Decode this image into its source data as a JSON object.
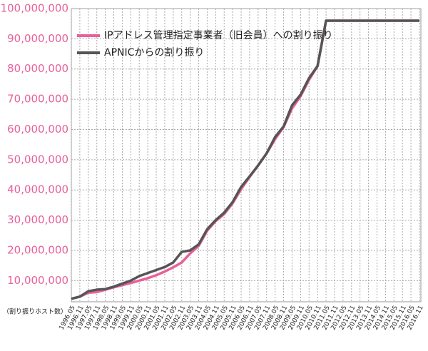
{
  "chart_data": {
    "type": "line",
    "categories": [
      "1996.05",
      "1996.11",
      "1997.05",
      "1997.11",
      "1998.05",
      "1998.11",
      "1999.05",
      "1999.11",
      "2000.05",
      "2000.11",
      "2001.05",
      "2001.11",
      "2002.05",
      "2002.11",
      "2003.05",
      "2003.11",
      "2004.05",
      "2004.11",
      "2005.05",
      "2005.11",
      "2006.05",
      "2006.11",
      "2007.05",
      "2007.11",
      "2008.05",
      "2008.11",
      "2009.05",
      "2009.11",
      "2010.05",
      "2010.11",
      "2011.05",
      "2011.11",
      "2012.05",
      "2012.11",
      "2013.05",
      "2013.11",
      "2014.05",
      "2014.11",
      "2015.05",
      "2015.11",
      "2016.05",
      "2016.11"
    ],
    "series": [
      {
        "name": "IPアドレス管理指定事業者（旧会員）への割り振り",
        "color": "#e8609a",
        "values": [
          4000000,
          4700000,
          6000000,
          6200000,
          7000000,
          7800000,
          8500000,
          9200000,
          10000000,
          10800000,
          11800000,
          13000000,
          14400000,
          16000000,
          19000000,
          21500000,
          26500000,
          29700000,
          32000000,
          35600000,
          40300000,
          44300000,
          48100000,
          52100000,
          56800000,
          60800000,
          67000000,
          71000000,
          76400000,
          81000000,
          96000000,
          96000000,
          96000000,
          96000000,
          96000000,
          96000000,
          96000000,
          96000000,
          96000000,
          96000000,
          96000000,
          96000000
        ]
      },
      {
        "name": "APNICからの割り振り",
        "color": "#555555",
        "values": [
          4000000,
          4700000,
          6500000,
          7000000,
          7200000,
          8000000,
          9000000,
          10000000,
          11500000,
          12500000,
          13500000,
          14500000,
          16000000,
          19500000,
          20000000,
          22000000,
          27000000,
          30000000,
          32500000,
          36000000,
          41000000,
          44500000,
          48100000,
          52100000,
          57500000,
          61000000,
          68000000,
          71500000,
          77000000,
          81000000,
          96000000,
          96000000,
          96000000,
          96000000,
          96000000,
          96000000,
          96000000,
          96000000,
          96000000,
          96000000,
          96000000,
          96000000
        ]
      }
    ],
    "ylim": [
      3000000,
      100000000
    ],
    "yticks": [
      {
        "value": 10000000,
        "label": "10,000,000"
      },
      {
        "value": 20000000,
        "label": "20,000,000"
      },
      {
        "value": 30000000,
        "label": "30,000,000"
      },
      {
        "value": 40000000,
        "label": "40,000,000"
      },
      {
        "value": 50000000,
        "label": "50,000,000"
      },
      {
        "value": 60000000,
        "label": "60,000,000"
      },
      {
        "value": 70000000,
        "label": "70,000,000"
      },
      {
        "value": 80000000,
        "label": "80,000,000"
      },
      {
        "value": 90000000,
        "label": "90,000,000"
      },
      {
        "value": 100000000,
        "label": "100,000,000"
      }
    ],
    "y_label": "（割り振りホスト数）",
    "grid": true,
    "legend": "upper left"
  }
}
